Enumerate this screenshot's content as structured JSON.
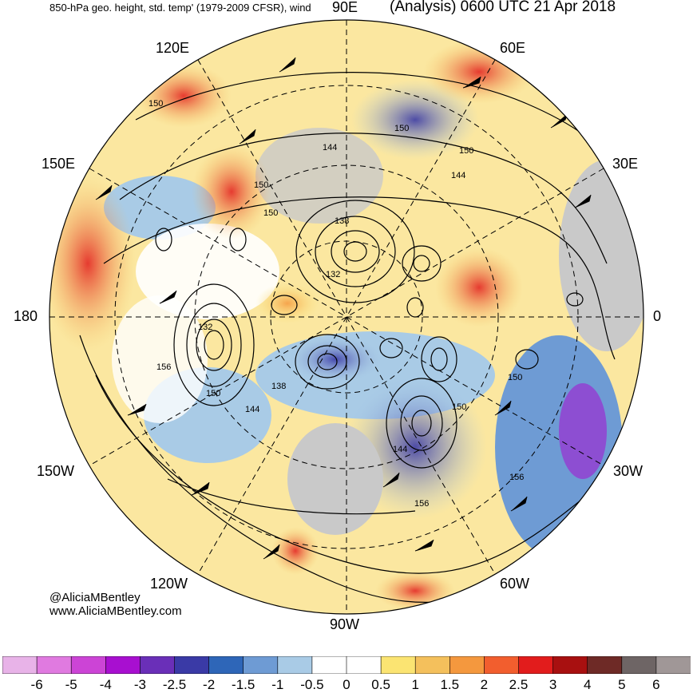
{
  "header": {
    "left": "850-hPa geo. height, std. temp' (1979-2009 CFSR), wind",
    "right": "(Analysis) 0600 UTC 21 Apr 2018"
  },
  "map": {
    "projection": "north-polar-stereographic",
    "center_lon_labels": [
      "90E",
      "60E",
      "30E",
      "0",
      "30W",
      "60W",
      "90W",
      "120W",
      "150W",
      "180",
      "150E",
      "120E"
    ],
    "contour_labels": [
      "150",
      "150",
      "150",
      "144",
      "150",
      "150",
      "138",
      "144",
      "132",
      "132",
      "156",
      "150",
      "138",
      "144",
      "150",
      "144",
      "150",
      "156",
      "156"
    ],
    "colors": {
      "land_gray": "#c9c9c9",
      "contour": "#000000"
    }
  },
  "credits": {
    "handle": "@AliciaMBentley",
    "url": "www.AliciaMBentley.com"
  },
  "colorbar": {
    "colors": [
      "#e8b3e8",
      "#e07ae0",
      "#cc44d6",
      "#a80fd0",
      "#6a2fb8",
      "#3a3aa6",
      "#2e66b8",
      "#6e9bd4",
      "#a9cbe6",
      "#ffffff",
      "#ffffff",
      "#fbe472",
      "#f4c05c",
      "#f4983e",
      "#f25e2e",
      "#e21c1c",
      "#a81010",
      "#6e2a26",
      "#6e6565",
      "#a09797"
    ],
    "ticks": [
      "-6",
      "-5",
      "-4",
      "-3",
      "-2.5",
      "-2",
      "-1.5",
      "-1",
      "-0.5",
      "0",
      "0.5",
      "1",
      "1.5",
      "2",
      "2.5",
      "3",
      "4",
      "5",
      "6"
    ]
  }
}
